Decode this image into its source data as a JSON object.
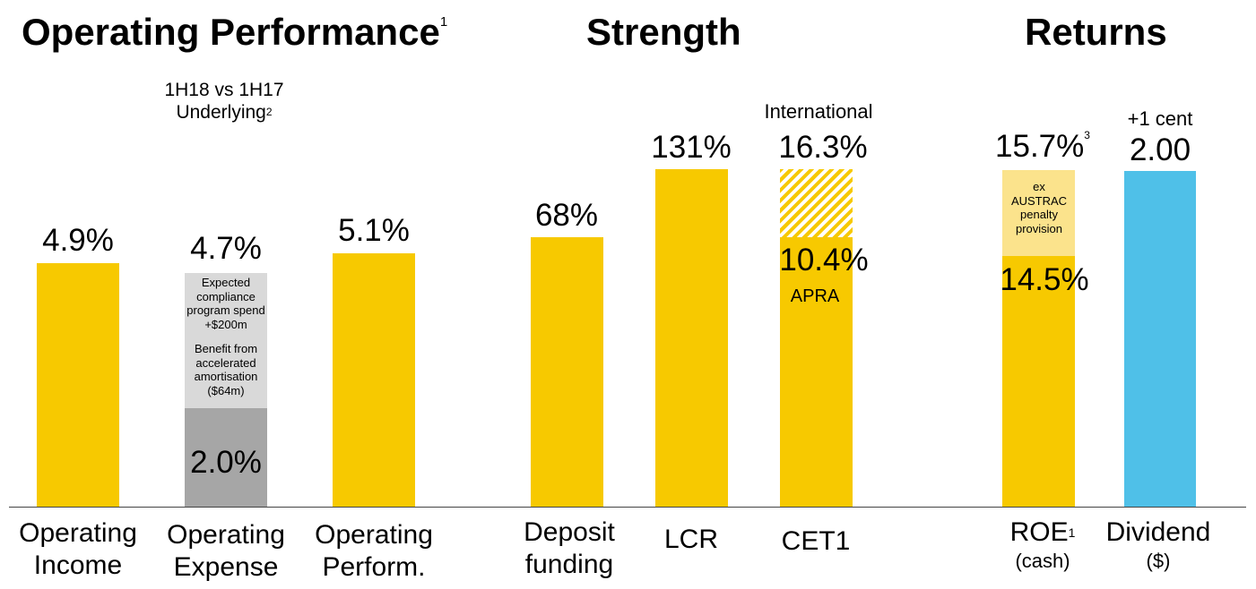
{
  "sections": {
    "operating_performance": {
      "title": "Operating Performance",
      "title_sup": "1"
    },
    "strength": {
      "title": "Strength"
    },
    "returns": {
      "title": "Returns"
    }
  },
  "subtitle": {
    "line1": "1H18 vs 1H17",
    "line2": "Underlying",
    "line2_sup": "2"
  },
  "value_labels": {
    "operating_income": "4.9%",
    "operating_expense": "4.7%",
    "operating_expense_base": "2.0%",
    "operating_perform": "5.1%",
    "deposit_funding": "68%",
    "lcr": "131%",
    "cet1_international": "16.3%",
    "cet1_apra": "10.4%",
    "roe_ex": "15.7%",
    "roe_ex_sup": "3",
    "roe": "14.5%",
    "dividend": "2.00"
  },
  "annotations": {
    "international": "International",
    "apra": "APRA",
    "plus_one_cent": "+1 cent",
    "opex_note_1": [
      "Expected",
      "compliance",
      "program spend",
      "+$200m"
    ],
    "opex_note_2": [
      "Benefit from",
      "accelerated",
      "amortisation",
      "($64m)"
    ],
    "roe_note": [
      "ex",
      "AUSTRAC",
      "penalty",
      "provision"
    ]
  },
  "categories": {
    "operating_income": [
      "Operating",
      "Income"
    ],
    "operating_expense": [
      "Operating",
      "Expense"
    ],
    "operating_perform": [
      "Operating",
      "Perform."
    ],
    "deposit_funding": [
      "Deposit",
      "funding"
    ],
    "lcr": "LCR",
    "cet1": "CET1",
    "roe": {
      "main": "ROE",
      "sup": "1",
      "sub": "(cash)"
    },
    "dividend": {
      "main": "Dividend",
      "sub": "($)"
    }
  },
  "colors": {
    "gold": "#f7c900",
    "gold_light": "#fbe38c",
    "grey_light": "#d9d9d9",
    "grey_dark": "#a6a6a6",
    "blue": "#4fc0e8"
  },
  "chart_data": [
    {
      "type": "bar",
      "title": "Operating Performance",
      "subtitle": "1H18 vs 1H17 Underlying",
      "categories": [
        "Operating Income",
        "Operating Expense",
        "Operating Perform."
      ],
      "series": [
        {
          "values": [
            4.9,
            2.0,
            5.1
          ]
        },
        {
          "values": [
            0,
            2.7,
            0
          ]
        }
      ],
      "totals": [
        4.9,
        4.7,
        5.1
      ],
      "unit": "%"
    },
    {
      "type": "bar",
      "title": "Strength",
      "categories": [
        "Deposit funding",
        "LCR",
        "CET1"
      ],
      "series": [
        {
          "name": "APRA",
          "values": [
            68,
            131,
            10.4
          ]
        },
        {
          "name": "International",
          "values": [
            null,
            null,
            16.3
          ]
        }
      ],
      "unit": "%"
    },
    {
      "type": "bar",
      "title": "Returns",
      "categories": [
        "ROE (cash)",
        "Dividend ($)"
      ],
      "series": [
        {
          "values": [
            14.5,
            2.0
          ]
        },
        {
          "name": "ex AUSTRAC penalty provision",
          "values": [
            15.7,
            null
          ]
        }
      ]
    }
  ]
}
